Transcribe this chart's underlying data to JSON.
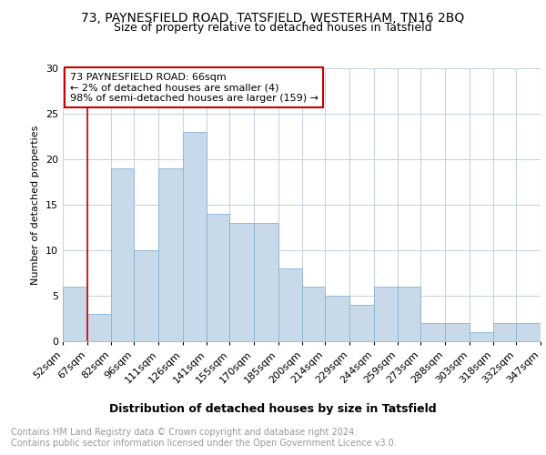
{
  "title1": "73, PAYNESFIELD ROAD, TATSFIELD, WESTERHAM, TN16 2BQ",
  "title2": "Size of property relative to detached houses in Tatsfield",
  "xlabel": "Distribution of detached houses by size in Tatsfield",
  "ylabel": "Number of detached properties",
  "bins": [
    "52sqm",
    "67sqm",
    "82sqm",
    "96sqm",
    "111sqm",
    "126sqm",
    "141sqm",
    "155sqm",
    "170sqm",
    "185sqm",
    "200sqm",
    "214sqm",
    "229sqm",
    "244sqm",
    "259sqm",
    "273sqm",
    "288sqm",
    "303sqm",
    "318sqm",
    "332sqm",
    "347sqm"
  ],
  "bin_left_edges": [
    52,
    67,
    82,
    96,
    111,
    126,
    141,
    155,
    170,
    185,
    200,
    214,
    229,
    244,
    259,
    273,
    288,
    303,
    318,
    332,
    347
  ],
  "values": [
    6,
    3,
    19,
    10,
    19,
    23,
    14,
    13,
    13,
    8,
    6,
    5,
    4,
    6,
    6,
    2,
    2,
    1,
    2,
    2
  ],
  "bar_color": "#c8d9ea",
  "bar_edge_color": "#8ab4d4",
  "grid_color": "#c8d4e0",
  "property_line_x": 67,
  "annotation_lines": [
    "73 PAYNESFIELD ROAD: 66sqm",
    "← 2% of detached houses are smaller (4)",
    "98% of semi-detached houses are larger (159) →"
  ],
  "annotation_box_color": "#ffffff",
  "annotation_box_edge_color": "#cc0000",
  "property_line_color": "#cc0000",
  "ylim": [
    0,
    30
  ],
  "yticks": [
    0,
    5,
    10,
    15,
    20,
    25,
    30
  ],
  "footnote": "Contains HM Land Registry data © Crown copyright and database right 2024.\nContains public sector information licensed under the Open Government Licence v3.0.",
  "title1_fontsize": 10,
  "title2_fontsize": 9,
  "xlabel_fontsize": 9,
  "ylabel_fontsize": 8,
  "tick_fontsize": 8,
  "annotation_fontsize": 8,
  "footnote_fontsize": 7,
  "footnote_color": "#999999"
}
